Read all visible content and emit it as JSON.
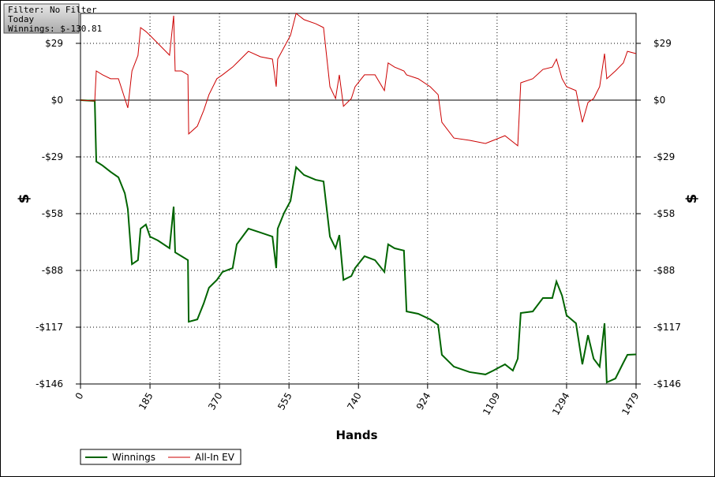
{
  "chart_data": {
    "type": "line",
    "info": [
      "Filter: No Filter",
      "Today",
      "Winnings: $-130.81"
    ],
    "xlabel": "Hands",
    "ylabel": "$",
    "y2label": "$",
    "xlim": [
      0,
      1479
    ],
    "xticks": [
      0,
      185,
      370,
      555,
      740,
      924,
      1109,
      1294,
      1479
    ],
    "ylim": [
      -146,
      44.6
    ],
    "yticks": [
      {
        "value": 29.2,
        "label": "$29"
      },
      {
        "value": 0,
        "label": "$0"
      },
      {
        "value": -29.2,
        "label": "-$29"
      },
      {
        "value": -58.4,
        "label": "-$58"
      },
      {
        "value": -87.6,
        "label": "-$88"
      },
      {
        "value": -116.8,
        "label": "-$117"
      },
      {
        "value": -146,
        "label": "-$146"
      }
    ],
    "grid": true,
    "x": [
      0,
      38,
      42,
      59,
      80,
      101,
      118,
      126,
      137,
      153,
      160,
      174,
      185,
      206,
      237,
      248,
      252,
      269,
      286,
      288,
      311,
      328,
      342,
      363,
      378,
      405,
      416,
      447,
      479,
      511,
      521,
      525,
      542,
      559,
      574,
      595,
      626,
      647,
      664,
      679,
      689,
      700,
      721,
      731,
      756,
      784,
      809,
      819,
      836,
      861,
      868,
      899,
      931,
      952,
      962,
      994,
      1036,
      1078,
      1099,
      1130,
      1151,
      1164,
      1172,
      1204,
      1231,
      1256,
      1267,
      1282,
      1294,
      1319,
      1336,
      1351,
      1366,
      1382,
      1395,
      1401,
      1424,
      1445,
      1456,
      1479
    ],
    "series": [
      {
        "name": "Winnings",
        "color": "#006400",
        "values": [
          0,
          -0.4,
          -31.6,
          -33.7,
          -36.9,
          -39.7,
          -47.9,
          -56,
          -84.4,
          -82.3,
          -66.1,
          -64,
          -70.2,
          -72.2,
          -76.2,
          -54.8,
          -78.3,
          -80.3,
          -82.3,
          -114,
          -112.8,
          -104.6,
          -96.5,
          -92.5,
          -88.4,
          -86.4,
          -74.2,
          -66.1,
          -68.1,
          -70.2,
          -86.4,
          -66.1,
          -58,
          -51.9,
          -34.5,
          -38.5,
          -41,
          -41.8,
          -70.2,
          -76.2,
          -69.4,
          -92.5,
          -90.5,
          -86.4,
          -80.3,
          -82.3,
          -88.4,
          -74.2,
          -76.2,
          -77.4,
          -108.7,
          -109.9,
          -112.8,
          -115.6,
          -131,
          -137.1,
          -139.9,
          -141.1,
          -139.1,
          -135.9,
          -139.1,
          -133,
          -109.5,
          -108.7,
          -101.8,
          -101.8,
          -93.3,
          -100.6,
          -110.7,
          -114.8,
          -135.9,
          -120.9,
          -133,
          -137.1,
          -114.8,
          -145.2,
          -143.2,
          -135.1,
          -131,
          -130.8
        ]
      },
      {
        "name": "All-In EV",
        "color": "#cc0000",
        "values": [
          0,
          -0.4,
          15,
          13,
          11,
          11,
          0.8,
          -4,
          15,
          23,
          37.3,
          35.3,
          33.3,
          29.2,
          23.1,
          43.4,
          15,
          15,
          13,
          -17.4,
          -13.4,
          -5.3,
          2.8,
          11,
          13,
          17,
          19.1,
          25.1,
          22.3,
          21.1,
          6.9,
          21.1,
          27.2,
          33.3,
          44.6,
          41.4,
          39.3,
          37.3,
          6.9,
          0.8,
          13,
          -3.2,
          0.8,
          6.9,
          13,
          13,
          4.9,
          19.1,
          17,
          15,
          13,
          11,
          6.9,
          2.8,
          -11.4,
          -19.5,
          -20.7,
          -22.3,
          -20.7,
          -18.3,
          -21.5,
          -23.5,
          8.9,
          11,
          15.8,
          17,
          21.1,
          11,
          6.9,
          4.9,
          -11.4,
          -1.2,
          0.8,
          6.9,
          23.9,
          11,
          15,
          19.1,
          25.1,
          23.9
        ]
      }
    ]
  }
}
